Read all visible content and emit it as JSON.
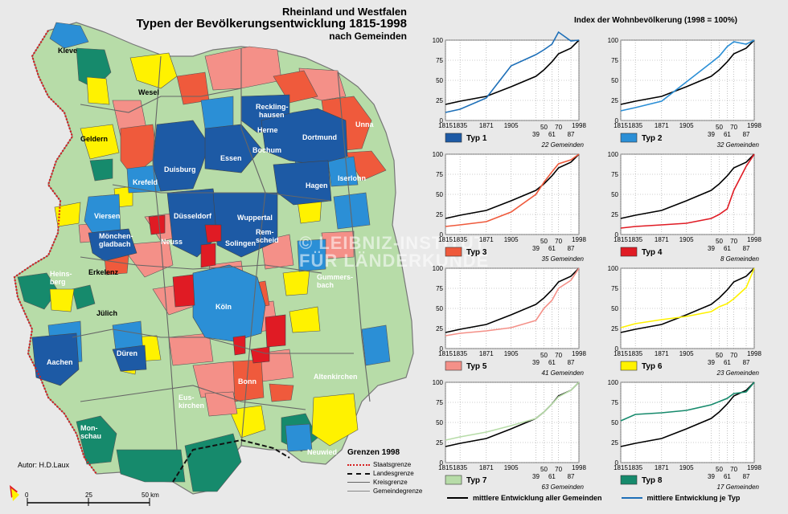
{
  "title": {
    "line1": "Rheinland und Westfalen",
    "line2": "Typen der Bevölkerungsentwicklung 1815-1998",
    "line3": "nach Gemeinden"
  },
  "index_title": "Index der Wohnbevölkerung (1998 = 100%)",
  "author": "Autor:  H.D.Laux",
  "watermark": {
    "line1": "© LEIBNIZ-INSTITUT",
    "line2": "FÜR LÄNDERKUNDE"
  },
  "cities": [
    "Kleve",
    "Wesel",
    "Geldern",
    "Recklinghausen",
    "Herne",
    "Unna",
    "Dortmund",
    "Bochum",
    "Essen",
    "Duisburg",
    "Krefeld",
    "Iserlohn",
    "Hagen",
    "Viersen",
    "Düsseldorf",
    "Wuppertal",
    "Remscheid",
    "Solingen",
    "Mönchengladbach",
    "Neuss",
    "Heinsberg",
    "Erkelenz",
    "Gummersbach",
    "Jülich",
    "Köln",
    "Düren",
    "Aachen",
    "Bonn",
    "Altenkirchen",
    "Euskirchen",
    "Monschau",
    "Neuwied"
  ],
  "borders_legend": {
    "title": "Grenzen 1998",
    "items": [
      "Staatsgrenze",
      "Landesgrenze",
      "Kreisgrenze",
      "Gemeindegrenze"
    ]
  },
  "scale": {
    "labels": [
      "0",
      "25",
      "50 km"
    ]
  },
  "colors": {
    "typ1": "#1d5aa5",
    "typ2": "#2b8fd6",
    "typ3": "#ef5a3c",
    "typ4": "#e01b24",
    "typ5": "#f49088",
    "typ6": "#fff200",
    "typ7": "#b7dca8",
    "typ8": "#168a6c",
    "all": "#000000",
    "type_line": "#1d6fb8",
    "background": "#e9e9e9"
  },
  "chart_data": [
    {
      "type": "line",
      "name": "Typ 1",
      "caption": "22 Gemeinden",
      "swatch": "#1d5aa5",
      "line_color": "#1d6fb8",
      "x": [
        1815,
        1835,
        1871,
        1905,
        1939,
        1950,
        1961,
        1970,
        1987,
        1998
      ],
      "series": [
        {
          "name": "mittlere Entwicklung aller Gemeinden",
          "values": [
            20,
            24,
            30,
            42,
            55,
            63,
            73,
            83,
            90,
            100
          ]
        },
        {
          "name": "Typ 1",
          "values": [
            10,
            14,
            28,
            68,
            82,
            88,
            95,
            110,
            99,
            100
          ]
        }
      ],
      "xticks_top": [
        "1815",
        "1835",
        "1871",
        "1905",
        "1998"
      ],
      "xticks_bottom": [
        "39",
        "50",
        "61",
        "70",
        "87"
      ],
      "ylim": [
        0,
        100
      ],
      "yticks": [
        "0",
        "25",
        "50",
        "75",
        "100"
      ]
    },
    {
      "type": "line",
      "name": "Typ 2",
      "caption": "32 Gemeinden",
      "swatch": "#2b8fd6",
      "line_color": "#2b8fd6",
      "x": [
        1815,
        1835,
        1871,
        1905,
        1939,
        1950,
        1961,
        1970,
        1987,
        1998
      ],
      "series": [
        {
          "name": "mittlere Entwicklung aller Gemeinden",
          "values": [
            20,
            24,
            30,
            42,
            55,
            63,
            73,
            83,
            90,
            100
          ]
        },
        {
          "name": "Typ 2",
          "values": [
            12,
            16,
            24,
            48,
            72,
            80,
            92,
            98,
            95,
            100
          ]
        }
      ],
      "xticks_top": [
        "1815",
        "1835",
        "1871",
        "1905",
        "1998"
      ],
      "xticks_bottom": [
        "39",
        "50",
        "61",
        "70",
        "87"
      ],
      "ylim": [
        0,
        100
      ],
      "yticks": [
        "0",
        "25",
        "50",
        "75",
        "100"
      ]
    },
    {
      "type": "line",
      "name": "Typ 3",
      "caption": "35 Gemeinden",
      "swatch": "#ef5a3c",
      "line_color": "#ef5a3c",
      "x": [
        1815,
        1835,
        1871,
        1905,
        1939,
        1950,
        1961,
        1970,
        1987,
        1998
      ],
      "series": [
        {
          "name": "mittlere Entwicklung aller Gemeinden",
          "values": [
            20,
            24,
            30,
            42,
            55,
            63,
            73,
            83,
            90,
            100
          ]
        },
        {
          "name": "Typ 3",
          "values": [
            10,
            12,
            16,
            28,
            50,
            65,
            78,
            88,
            93,
            100
          ]
        }
      ],
      "xticks_top": [
        "1815",
        "1835",
        "1871",
        "1905",
        "1998"
      ],
      "xticks_bottom": [
        "39",
        "50",
        "61",
        "70",
        "87"
      ],
      "ylim": [
        0,
        100
      ],
      "yticks": [
        "0",
        "25",
        "50",
        "75",
        "100"
      ]
    },
    {
      "type": "line",
      "name": "Typ 4",
      "caption": "8 Gemeinden",
      "swatch": "#e01b24",
      "line_color": "#e01b24",
      "x": [
        1815,
        1835,
        1871,
        1905,
        1939,
        1950,
        1961,
        1970,
        1987,
        1998
      ],
      "series": [
        {
          "name": "mittlere Entwicklung aller Gemeinden",
          "values": [
            20,
            24,
            30,
            42,
            55,
            63,
            73,
            83,
            90,
            100
          ]
        },
        {
          "name": "Typ 4",
          "values": [
            8,
            10,
            12,
            14,
            20,
            25,
            32,
            55,
            85,
            100
          ]
        }
      ],
      "xticks_top": [
        "1815",
        "1835",
        "1871",
        "1905",
        "1998"
      ],
      "xticks_bottom": [
        "39",
        "50",
        "61",
        "70",
        "87"
      ],
      "ylim": [
        0,
        100
      ],
      "yticks": [
        "0",
        "25",
        "50",
        "75",
        "100"
      ]
    },
    {
      "type": "line",
      "name": "Typ 5",
      "caption": "41 Gemeinden",
      "swatch": "#f49088",
      "line_color": "#f49088",
      "x": [
        1815,
        1835,
        1871,
        1905,
        1939,
        1950,
        1961,
        1970,
        1987,
        1998
      ],
      "series": [
        {
          "name": "mittlere Entwicklung aller Gemeinden",
          "values": [
            20,
            24,
            30,
            42,
            55,
            63,
            73,
            83,
            90,
            100
          ]
        },
        {
          "name": "Typ 5",
          "values": [
            16,
            19,
            22,
            26,
            35,
            50,
            60,
            75,
            85,
            100
          ]
        }
      ],
      "xticks_top": [
        "1815",
        "1835",
        "1871",
        "1905",
        "1998"
      ],
      "xticks_bottom": [
        "39",
        "50",
        "61",
        "70",
        "87"
      ],
      "ylim": [
        0,
        100
      ],
      "yticks": [
        "0",
        "25",
        "50",
        "75",
        "100"
      ]
    },
    {
      "type": "line",
      "name": "Typ 6",
      "caption": "23 Gemeinden",
      "swatch": "#fff200",
      "line_color": "#fff200",
      "x": [
        1815,
        1835,
        1871,
        1905,
        1939,
        1950,
        1961,
        1970,
        1987,
        1998
      ],
      "series": [
        {
          "name": "mittlere Entwicklung aller Gemeinden",
          "values": [
            20,
            24,
            30,
            42,
            55,
            63,
            73,
            83,
            90,
            100
          ]
        },
        {
          "name": "Typ 6",
          "values": [
            26,
            31,
            36,
            40,
            46,
            52,
            56,
            62,
            76,
            100
          ]
        }
      ],
      "xticks_top": [
        "1815",
        "1835",
        "1871",
        "1905",
        "1998"
      ],
      "xticks_bottom": [
        "39",
        "50",
        "61",
        "70",
        "87"
      ],
      "ylim": [
        0,
        100
      ],
      "yticks": [
        "0",
        "25",
        "50",
        "75",
        "100"
      ]
    },
    {
      "type": "line",
      "name": "Typ 7",
      "caption": "63 Gemeinden",
      "swatch": "#b7dca8",
      "line_color": "#b7dca8",
      "x": [
        1815,
        1835,
        1871,
        1905,
        1939,
        1950,
        1961,
        1970,
        1987,
        1998
      ],
      "series": [
        {
          "name": "mittlere Entwicklung aller Gemeinden",
          "values": [
            20,
            24,
            30,
            42,
            55,
            63,
            73,
            83,
            90,
            100
          ]
        },
        {
          "name": "Typ 7",
          "values": [
            28,
            32,
            38,
            46,
            55,
            63,
            73,
            82,
            90,
            100
          ]
        }
      ],
      "xticks_top": [
        "1815",
        "1835",
        "1871",
        "1905",
        "1998"
      ],
      "xticks_bottom": [
        "39",
        "50",
        "61",
        "70",
        "87"
      ],
      "ylim": [
        0,
        100
      ],
      "yticks": [
        "0",
        "25",
        "50",
        "75",
        "100"
      ]
    },
    {
      "type": "line",
      "name": "Typ 8",
      "caption": "17 Gemeinden",
      "swatch": "#168a6c",
      "line_color": "#168a6c",
      "x": [
        1815,
        1835,
        1871,
        1905,
        1939,
        1950,
        1961,
        1970,
        1987,
        1998
      ],
      "series": [
        {
          "name": "mittlere Entwicklung aller Gemeinden",
          "values": [
            20,
            24,
            30,
            42,
            55,
            63,
            73,
            83,
            90,
            100
          ]
        },
        {
          "name": "Typ 8",
          "values": [
            52,
            60,
            62,
            65,
            72,
            76,
            80,
            86,
            88,
            100
          ]
        }
      ],
      "xticks_top": [
        "1815",
        "1835",
        "1871",
        "1905",
        "1998"
      ],
      "xticks_bottom": [
        "39",
        "50",
        "61",
        "70",
        "87"
      ],
      "ylim": [
        0,
        100
      ],
      "yticks": [
        "0",
        "25",
        "50",
        "75",
        "100"
      ]
    }
  ],
  "bottom_legend": {
    "all": "mittlere Entwicklung aller Gemeinden",
    "type": "mittlere Entwicklung je Typ"
  }
}
